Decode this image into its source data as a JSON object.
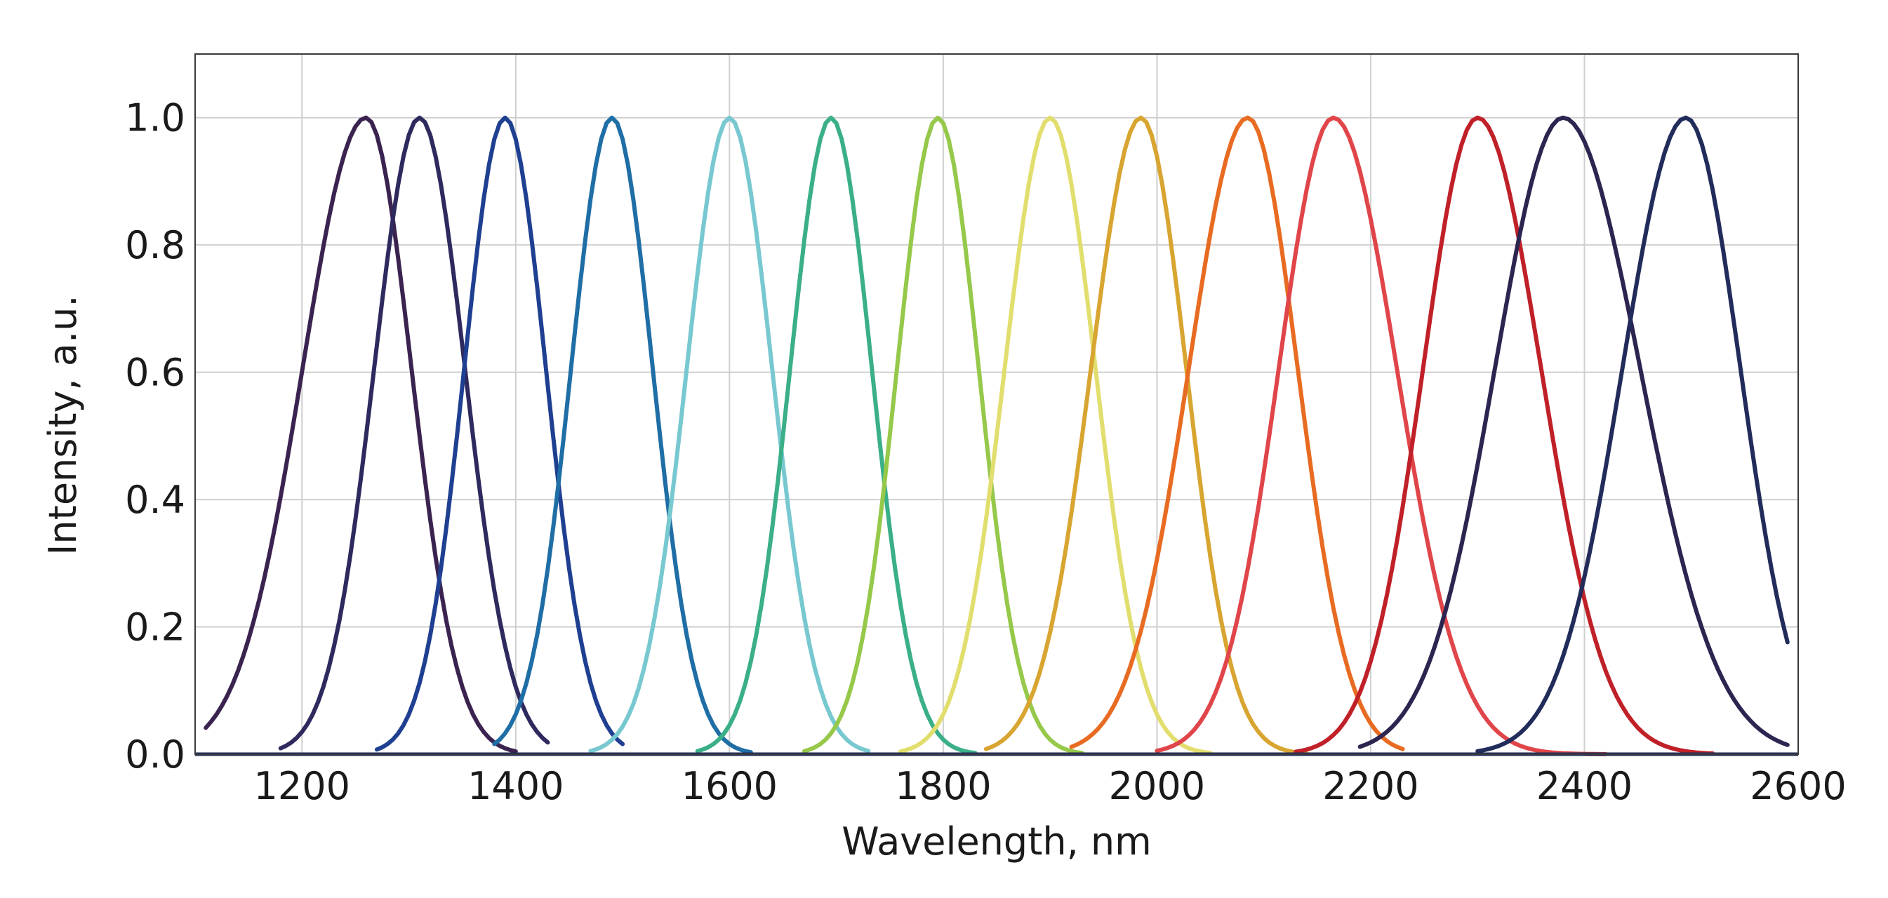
{
  "chart_data": {
    "type": "line",
    "title": "",
    "xlabel": "Wavelength, nm",
    "ylabel": "Intensity, a.u.",
    "xlim": [
      1100,
      2600
    ],
    "ylim": [
      0,
      1.1
    ],
    "xticks": [
      1200,
      1400,
      1600,
      1800,
      2000,
      2200,
      2400,
      2600
    ],
    "yticks": [
      0.0,
      0.2,
      0.4,
      0.6,
      0.8,
      1.0
    ],
    "xtick_labels": [
      "1200",
      "1400",
      "1600",
      "1800",
      "2000",
      "2200",
      "2400",
      "2600"
    ],
    "ytick_labels": [
      "0.0",
      "0.2",
      "0.4",
      "0.6",
      "0.8",
      "1.0"
    ],
    "grid": true,
    "legend": "none",
    "series": [
      {
        "peak": 1260,
        "left_hw": 70,
        "right_hw": 50,
        "start": 1110,
        "end": 1400,
        "color": "#3b2350"
      },
      {
        "peak": 1310,
        "left_hw": 50,
        "right_hw": 50,
        "start": 1180,
        "end": 1430,
        "color": "#2e2a5e"
      },
      {
        "peak": 1390,
        "left_hw": 45,
        "right_hw": 45,
        "start": 1270,
        "end": 1500,
        "color": "#1f3f91"
      },
      {
        "peak": 1490,
        "left_hw": 45,
        "right_hw": 45,
        "start": 1380,
        "end": 1620,
        "color": "#1f6ea6"
      },
      {
        "peak": 1600,
        "left_hw": 47,
        "right_hw": 47,
        "start": 1470,
        "end": 1730,
        "color": "#78c8d0"
      },
      {
        "peak": 1695,
        "left_hw": 45,
        "right_hw": 45,
        "start": 1570,
        "end": 1830,
        "color": "#3aaf88"
      },
      {
        "peak": 1795,
        "left_hw": 45,
        "right_hw": 45,
        "start": 1670,
        "end": 1930,
        "color": "#96c84a"
      },
      {
        "peak": 1900,
        "left_hw": 50,
        "right_hw": 50,
        "start": 1760,
        "end": 2050,
        "color": "#e2de6e"
      },
      {
        "peak": 1985,
        "left_hw": 55,
        "right_hw": 50,
        "start": 1840,
        "end": 2140,
        "color": "#d8a531"
      },
      {
        "peak": 2085,
        "left_hw": 65,
        "right_hw": 55,
        "start": 1920,
        "end": 2230,
        "color": "#e86b22"
      },
      {
        "peak": 2165,
        "left_hw": 60,
        "right_hw": 70,
        "start": 2000,
        "end": 2420,
        "color": "#e0454a"
      },
      {
        "peak": 2300,
        "left_hw": 60,
        "right_hw": 70,
        "start": 2130,
        "end": 2520,
        "color": "#c02028"
      },
      {
        "peak": 2380,
        "left_hw": 75,
        "right_hw": 85,
        "start": 2190,
        "end": 2590,
        "color": "#2d2450"
      },
      {
        "peak": 2495,
        "left_hw": 70,
        "right_hw": 60,
        "start": 2300,
        "end": 2590,
        "color": "#222c5a"
      }
    ]
  }
}
